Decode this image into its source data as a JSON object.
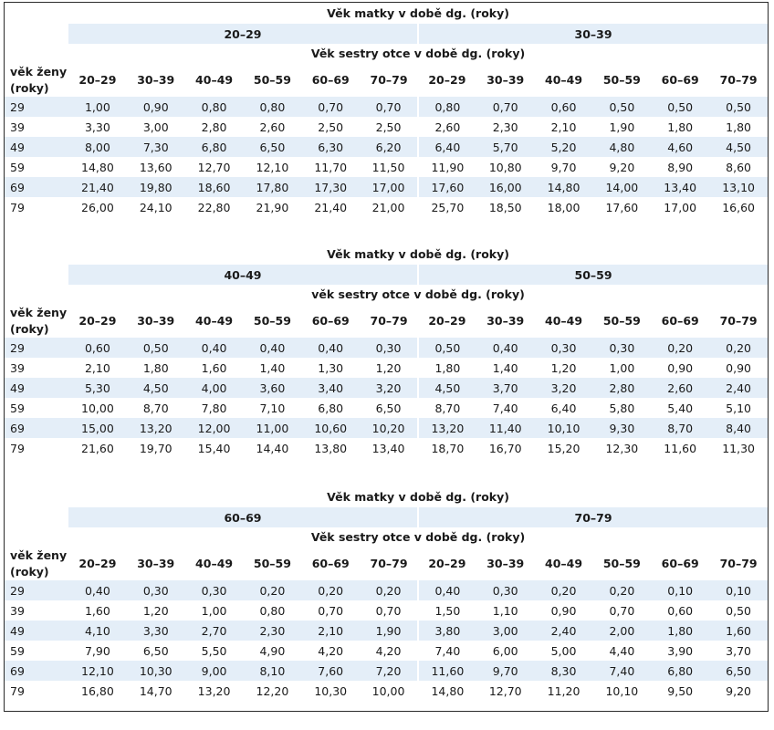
{
  "blocks": [
    {
      "mother_age_label": "Věk matky v době dg. (roky)",
      "mother_groups": [
        "20–29",
        "30–39"
      ],
      "sister_age_label": "Věk sestry otce v době dg. (roky)",
      "row_header_line1": "věk ženy",
      "row_header_line2": "(roky)",
      "sister_columns": [
        "20–29",
        "30–39",
        "40–49",
        "50–59",
        "60–69",
        "70–79",
        "20–29",
        "30–39",
        "40–49",
        "50–59",
        "60–69",
        "70–79"
      ],
      "rows": [
        {
          "age": "29",
          "values": [
            "1,00",
            "0,90",
            "0,80",
            "0,80",
            "0,70",
            "0,70",
            "0,80",
            "0,70",
            "0,60",
            "0,50",
            "0,50",
            "0,50"
          ]
        },
        {
          "age": "39",
          "values": [
            "3,30",
            "3,00",
            "2,80",
            "2,60",
            "2,50",
            "2,50",
            "2,60",
            "2,30",
            "2,10",
            "1,90",
            "1,80",
            "1,80"
          ]
        },
        {
          "age": "49",
          "values": [
            "8,00",
            "7,30",
            "6,80",
            "6,50",
            "6,30",
            "6,20",
            "6,40",
            "5,70",
            "5,20",
            "4,80",
            "4,60",
            "4,50"
          ]
        },
        {
          "age": "59",
          "values": [
            "14,80",
            "13,60",
            "12,70",
            "12,10",
            "11,70",
            "11,50",
            "11,90",
            "10,80",
            "9,70",
            "9,20",
            "8,90",
            "8,60"
          ]
        },
        {
          "age": "69",
          "values": [
            "21,40",
            "19,80",
            "18,60",
            "17,80",
            "17,30",
            "17,00",
            "17,60",
            "16,00",
            "14,80",
            "14,00",
            "13,40",
            "13,10"
          ]
        },
        {
          "age": "79",
          "values": [
            "26,00",
            "24,10",
            "22,80",
            "21,90",
            "21,40",
            "21,00",
            "25,70",
            "18,50",
            "18,00",
            "17,60",
            "17,00",
            "16,60"
          ]
        }
      ]
    },
    {
      "mother_age_label": "Věk matky v době dg. (roky)",
      "mother_groups": [
        "40–49",
        "50–59"
      ],
      "sister_age_label": "věk sestry otce v době dg. (roky)",
      "row_header_line1": "věk ženy",
      "row_header_line2": "(roky)",
      "sister_columns": [
        "20–29",
        "30–39",
        "40–49",
        "50–59",
        "60–69",
        "70–79",
        "20–29",
        "30–39",
        "40–49",
        "50–59",
        "60–69",
        "70–79"
      ],
      "rows": [
        {
          "age": "29",
          "values": [
            "0,60",
            "0,50",
            "0,40",
            "0,40",
            "0,40",
            "0,30",
            "0,50",
            "0,40",
            "0,30",
            "0,30",
            "0,20",
            "0,20"
          ]
        },
        {
          "age": "39",
          "values": [
            "2,10",
            "1,80",
            "1,60",
            "1,40",
            "1,30",
            "1,20",
            "1,80",
            "1,40",
            "1,20",
            "1,00",
            "0,90",
            "0,90"
          ]
        },
        {
          "age": "49",
          "values": [
            "5,30",
            "4,50",
            "4,00",
            "3,60",
            "3,40",
            "3,20",
            "4,50",
            "3,70",
            "3,20",
            "2,80",
            "2,60",
            "2,40"
          ]
        },
        {
          "age": "59",
          "values": [
            "10,00",
            "8,70",
            "7,80",
            "7,10",
            "6,80",
            "6,50",
            "8,70",
            "7,40",
            "6,40",
            "5,80",
            "5,40",
            "5,10"
          ]
        },
        {
          "age": "69",
          "values": [
            "15,00",
            "13,20",
            "12,00",
            "11,00",
            "10,60",
            "10,20",
            "13,20",
            "11,40",
            "10,10",
            "9,30",
            "8,70",
            "8,40"
          ]
        },
        {
          "age": "79",
          "values": [
            "21,60",
            "19,70",
            "15,40",
            "14,40",
            "13,80",
            "13,40",
            "18,70",
            "16,70",
            "15,20",
            "12,30",
            "11,60",
            "11,30"
          ]
        }
      ]
    },
    {
      "mother_age_label": "Věk matky v době dg. (roky)",
      "mother_groups": [
        "60–69",
        "70–79"
      ],
      "sister_age_label": "Věk sestry otce v době dg. (roky)",
      "row_header_line1": "věk ženy",
      "row_header_line2": "(roky)",
      "sister_columns": [
        "20–29",
        "30–39",
        "40–49",
        "50–59",
        "60–69",
        "70–79",
        "20–29",
        "30–39",
        "40–49",
        "50–59",
        "60–69",
        "70–79"
      ],
      "rows": [
        {
          "age": "29",
          "values": [
            "0,40",
            "0,30",
            "0,30",
            "0,20",
            "0,20",
            "0,20",
            "0,40",
            "0,30",
            "0,20",
            "0,20",
            "0,10",
            "0,10"
          ]
        },
        {
          "age": "39",
          "values": [
            "1,60",
            "1,20",
            "1,00",
            "0,80",
            "0,70",
            "0,70",
            "1,50",
            "1,10",
            "0,90",
            "0,70",
            "0,60",
            "0,50"
          ]
        },
        {
          "age": "49",
          "values": [
            "4,10",
            "3,30",
            "2,70",
            "2,30",
            "2,10",
            "1,90",
            "3,80",
            "3,00",
            "2,40",
            "2,00",
            "1,80",
            "1,60"
          ]
        },
        {
          "age": "59",
          "values": [
            "7,90",
            "6,50",
            "5,50",
            "4,90",
            "4,20",
            "4,20",
            "7,40",
            "6,00",
            "5,00",
            "4,40",
            "3,90",
            "3,70"
          ]
        },
        {
          "age": "69",
          "values": [
            "12,10",
            "10,30",
            "9,00",
            "8,10",
            "7,60",
            "7,20",
            "11,60",
            "9,70",
            "8,30",
            "7,40",
            "6,80",
            "6,50"
          ]
        },
        {
          "age": "79",
          "values": [
            "16,80",
            "14,70",
            "13,20",
            "12,20",
            "10,30",
            "10,00",
            "14,80",
            "12,70",
            "11,20",
            "10,10",
            "9,50",
            "9,20"
          ]
        }
      ]
    }
  ]
}
